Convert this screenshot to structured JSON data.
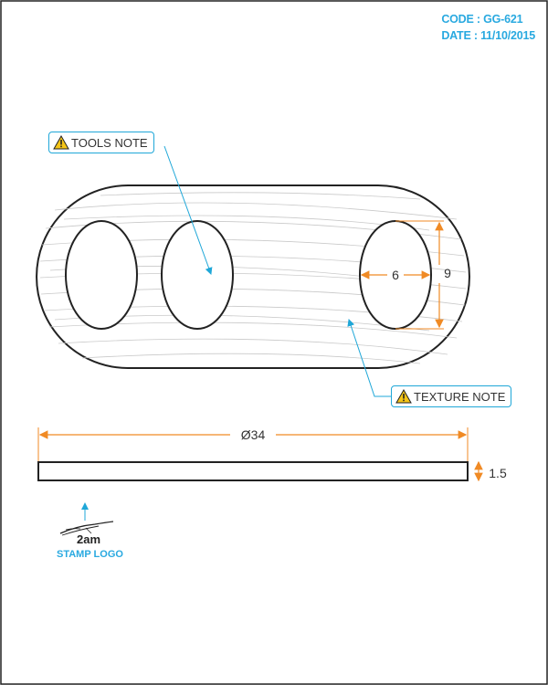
{
  "header": {
    "code": "CODE : GG-621",
    "date": "DATE : 11/10/2015"
  },
  "callouts": {
    "tools_note": "TOOLS NOTE",
    "texture_note": "TEXTURE NOTE"
  },
  "dimensions": {
    "hole_width": "6",
    "hole_height": "9",
    "diameter": "Ø34",
    "thickness": "1.5"
  },
  "stamp": {
    "logo_text": "2am",
    "label": "STAMP LOGO"
  },
  "colors": {
    "accent": "#29a9e0",
    "dimension": "#f08a24",
    "outline": "#222222",
    "warning": "#f5c518"
  },
  "icons": [
    "warning-icon",
    "leader-arrow-icon",
    "stamp-logo-icon"
  ]
}
